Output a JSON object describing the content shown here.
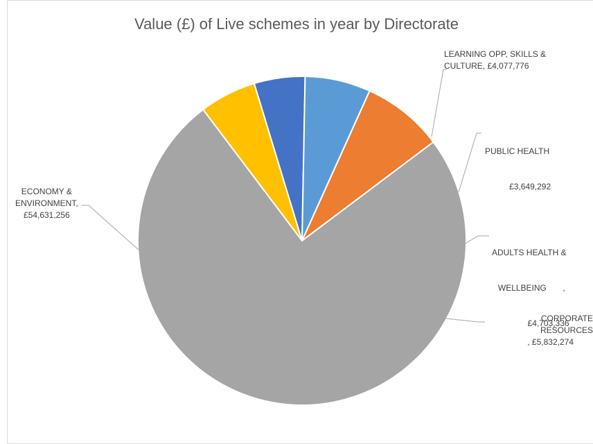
{
  "chart_data": {
    "type": "pie",
    "title": "Value (£) of Live schemes in year by Directorate",
    "categories": [
      "LEARNING OPP, SKILLS & CULTURE",
      "PUBLIC HEALTH",
      "ADULTS HEALTH & WELLBEING",
      "CORPORATE RESOURCES",
      "ECONOMY & ENVIRONMENT"
    ],
    "values": [
      4077776,
      3649292,
      4703336,
      5832274,
      54631256
    ],
    "colors": [
      "#FFC000",
      "#4472C4",
      "#5B9BD5",
      "#ED7D31",
      "#A5A5A5"
    ],
    "legend": "none",
    "labels": [
      {
        "lines": [
          "LEARNING OPP, SKILLS &",
          "CULTURE, £4,077,776"
        ]
      },
      {
        "lines": [
          "PUBLIC HEALTH                    ,",
          "£3,649,292"
        ]
      },
      {
        "lines": [
          "ADULTS HEALTH &",
          "WELLBEING       ,",
          "£4,703,336"
        ]
      },
      {
        "lines": [
          "CORPORATE RESOURCES",
          ", £5,832,274"
        ]
      },
      {
        "lines": [
          "ECONOMY &",
          "ENVIRONMENT,",
          "£54,631,256"
        ]
      }
    ]
  }
}
